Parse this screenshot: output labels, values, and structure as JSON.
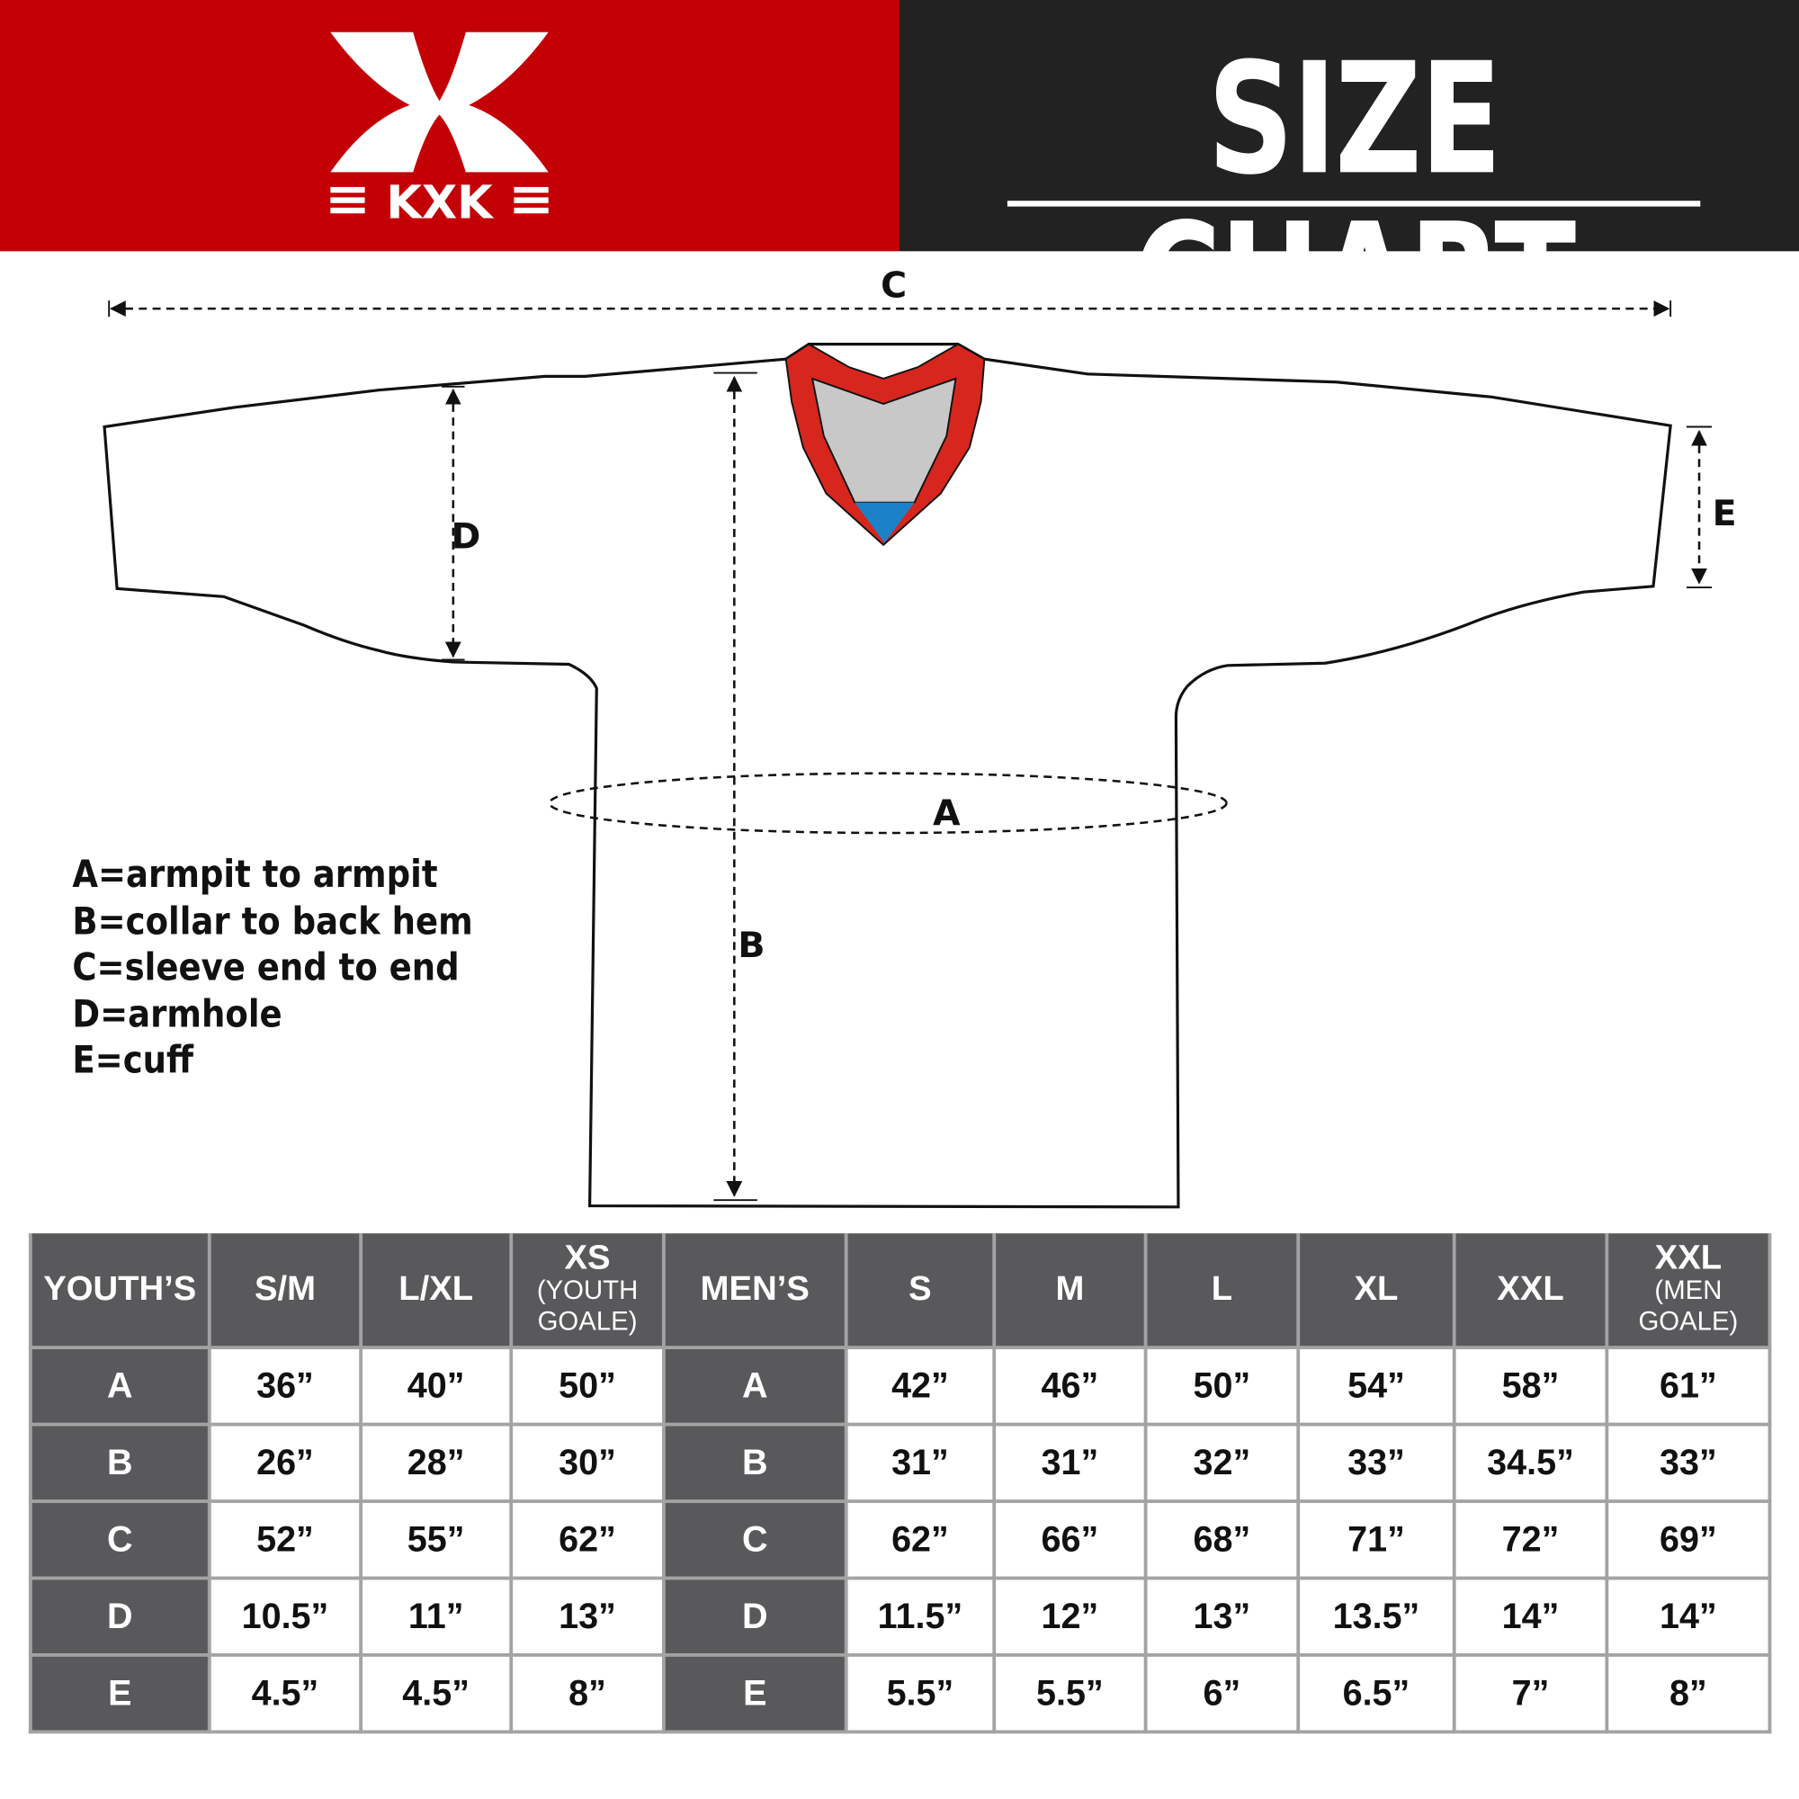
{
  "brand": {
    "logo_text": "KXK",
    "colors": {
      "red": "#c40007",
      "dark": "#222223",
      "collar_red": "#d7261e",
      "collar_gray": "#c8c8c8",
      "collar_blue": "#1b82c8",
      "table_gray": "#59595b"
    }
  },
  "header": {
    "title": "SIZE CHART"
  },
  "diagram": {
    "labels": {
      "a": "A",
      "b": "B",
      "c": "C",
      "d": "D",
      "e": "E"
    }
  },
  "legend": [
    "A=armpit to armpit",
    "B=collar to back hem",
    "C=sleeve end to end",
    "D=armhole",
    "E=cuff"
  ],
  "table": {
    "youth_header": "YOUTH’S",
    "mens_header": "MEN’S",
    "youth_sizes": [
      {
        "main": "S/M",
        "sub": ""
      },
      {
        "main": "L/XL",
        "sub": ""
      },
      {
        "main": "XS",
        "sub": "(YOUTH GOALE)"
      }
    ],
    "mens_sizes": [
      {
        "main": "S",
        "sub": ""
      },
      {
        "main": "M",
        "sub": ""
      },
      {
        "main": "L",
        "sub": ""
      },
      {
        "main": "XL",
        "sub": ""
      },
      {
        "main": "XXL",
        "sub": ""
      },
      {
        "main": "XXL",
        "sub": "(MEN GOALE)"
      }
    ],
    "rows": [
      {
        "label": "A",
        "youth": [
          "36”",
          "40”",
          "50”"
        ],
        "mens": [
          "42”",
          "46”",
          "50”",
          "54”",
          "58”",
          "61”"
        ]
      },
      {
        "label": "B",
        "youth": [
          "26”",
          "28”",
          "30”"
        ],
        "mens": [
          "31”",
          "31”",
          "32”",
          "33”",
          "34.5”",
          "33”"
        ]
      },
      {
        "label": "C",
        "youth": [
          "52”",
          "55”",
          "62”"
        ],
        "mens": [
          "62”",
          "66”",
          "68”",
          "71”",
          "72”",
          "69”"
        ]
      },
      {
        "label": "D",
        "youth": [
          "10.5”",
          "11”",
          "13”"
        ],
        "mens": [
          "11.5”",
          "12”",
          "13”",
          "13.5”",
          "14”",
          "14”"
        ]
      },
      {
        "label": "E",
        "youth": [
          "4.5”",
          "4.5”",
          "8”"
        ],
        "mens": [
          "5.5”",
          "5.5”",
          "6”",
          "6.5”",
          "7”",
          "8”"
        ]
      }
    ]
  }
}
